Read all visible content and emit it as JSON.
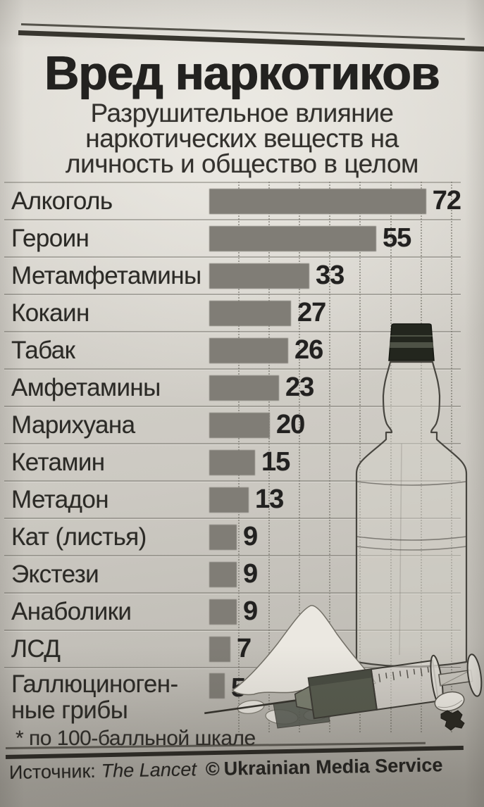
{
  "header": {
    "title": "Вред наркотиков",
    "subtitle_lines": [
      "Разрушительное влияние",
      "наркотических веществ на",
      "личность и общество в целом"
    ]
  },
  "chart_data": {
    "type": "bar",
    "orientation": "horizontal",
    "title": "Вред наркотиков",
    "subtitle": "Разрушительное влияние наркотических веществ на личность и общество в целом",
    "unit_note": "по 100-балльной шкале",
    "xlim": [
      0,
      100
    ],
    "gridline_step": 10,
    "grid": "dotted-vertical",
    "legend": "none",
    "bar_color": "#807d76",
    "categories": [
      "Алкоголь",
      "Героин",
      "Метамфетамины",
      "Кокаин",
      "Табак",
      "Амфетамины",
      "Марихуана",
      "Кетамин",
      "Метадон",
      "Кат (листья)",
      "Экстези",
      "Анаболики",
      "ЛСД",
      "Галлюциногенные грибы"
    ],
    "values": [
      72,
      55,
      33,
      27,
      26,
      23,
      20,
      15,
      13,
      9,
      9,
      9,
      7,
      5
    ],
    "rows": [
      {
        "label": "Алкоголь",
        "value": 72
      },
      {
        "label": "Героин",
        "value": 55
      },
      {
        "label": "Метамфетамины",
        "value": 33
      },
      {
        "label": "Кокаин",
        "value": 27
      },
      {
        "label": "Табак",
        "value": 26
      },
      {
        "label": "Амфетамины",
        "value": 23
      },
      {
        "label": "Марихуана",
        "value": 20
      },
      {
        "label": "Кетамин",
        "value": 15
      },
      {
        "label": "Метадон",
        "value": 13
      },
      {
        "label": "Кат (листья)",
        "value": 9
      },
      {
        "label": "Экстези",
        "value": 9
      },
      {
        "label": "Анаболики",
        "value": 9
      },
      {
        "label": "ЛСД",
        "value": 7
      },
      {
        "label": "Галлюциноген-",
        "label_line2": "ные грибы",
        "value": 5
      }
    ],
    "source": "The Lancet"
  },
  "footer": {
    "footnote": "* по 100-балльной шкале",
    "source_prefix": "Источник:",
    "source_name": "The Lancet",
    "copyright": "©",
    "source_owner": "Ukrainian Media Service"
  },
  "illustration": {
    "items": [
      "vodka-bottle",
      "powder-pile",
      "hash-block",
      "syringe",
      "pill",
      "plant-crumb"
    ]
  },
  "colors": {
    "paper": "#d2cfc8",
    "bar": "#807d76",
    "text": "#2b2a26",
    "grid": "#6c6961",
    "separator": "#767368",
    "rule": "#38362f"
  }
}
